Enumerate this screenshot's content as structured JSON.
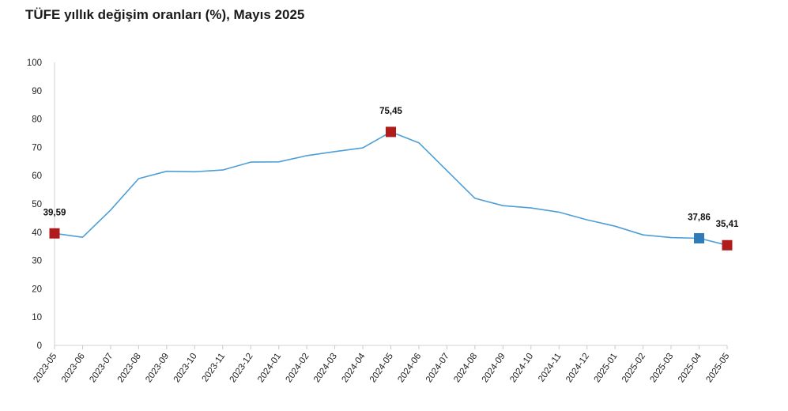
{
  "chart_data": {
    "type": "line",
    "title": "TÜFE yıllık değişim oranları (%), Mayıs 2025",
    "xlabel": "",
    "ylabel": "",
    "ylim": [
      0,
      100
    ],
    "yticks": [
      0,
      10,
      20,
      30,
      40,
      50,
      60,
      70,
      80,
      90,
      100
    ],
    "grid": false,
    "categories": [
      "2023-05",
      "2023-06",
      "2023-07",
      "2023-08",
      "2023-09",
      "2023-10",
      "2023-11",
      "2023-12",
      "2024-01",
      "2024-02",
      "2024-03",
      "2024-04",
      "2024-05",
      "2024-06",
      "2024-07",
      "2024-08",
      "2024-09",
      "2024-10",
      "2024-11",
      "2024-12",
      "2025-01",
      "2025-02",
      "2025-03",
      "2025-04",
      "2025-05"
    ],
    "series": [
      {
        "values": [
          39.59,
          38.21,
          47.83,
          58.94,
          61.53,
          61.36,
          61.98,
          64.77,
          64.86,
          67.07,
          68.5,
          69.8,
          75.45,
          71.6,
          61.78,
          51.97,
          49.38,
          48.58,
          47.09,
          44.38,
          42.12,
          39.05,
          38.1,
          37.86,
          35.41
        ],
        "color": "#4d9fd6"
      }
    ],
    "highlights": [
      {
        "category": "2023-05",
        "value": 39.59,
        "label": "39,59",
        "color": "#b01c1c"
      },
      {
        "category": "2024-05",
        "value": 75.45,
        "label": "75,45",
        "color": "#b01c1c"
      },
      {
        "category": "2025-04",
        "value": 37.86,
        "label": "37,86",
        "color": "#2e7bb7"
      },
      {
        "category": "2025-05",
        "value": 35.41,
        "label": "35,41",
        "color": "#b01c1c"
      }
    ]
  }
}
